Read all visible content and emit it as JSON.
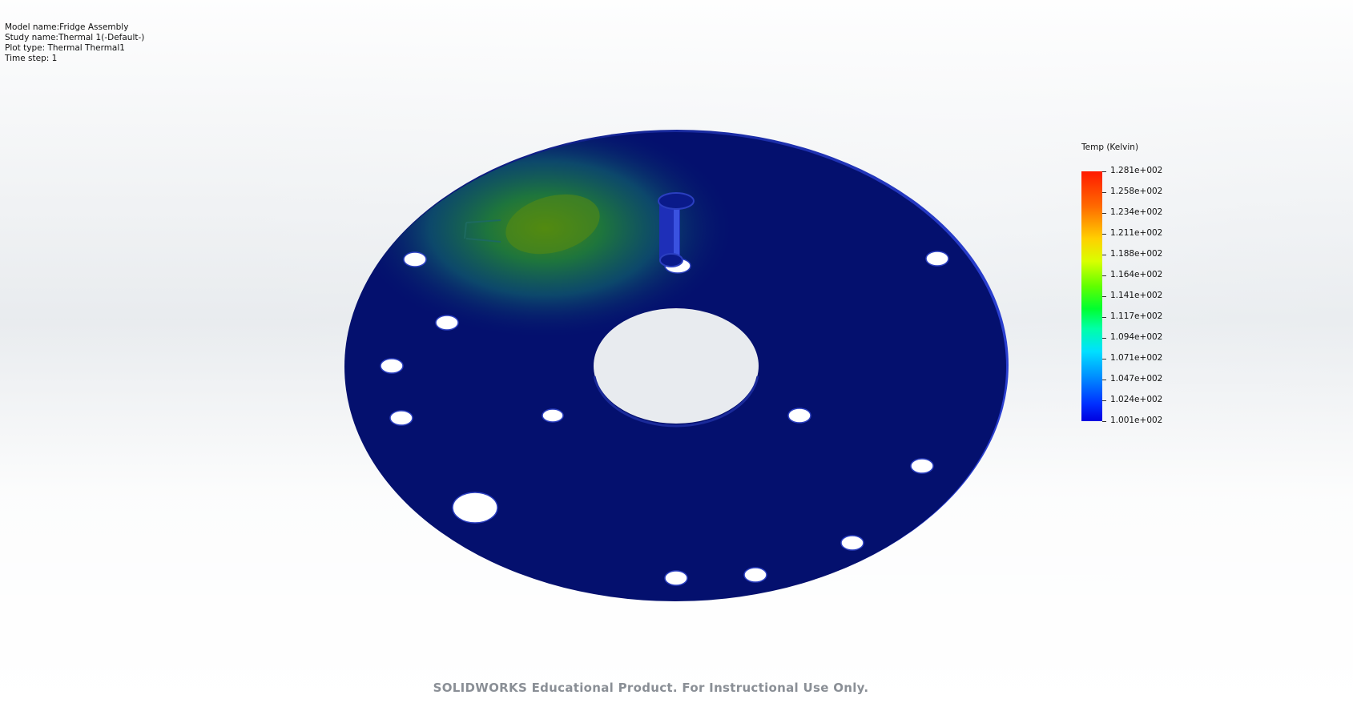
{
  "plot_info": {
    "model_name": "Model name:Fridge Assembly",
    "study_name": "Study name:Thermal 1(-Default-)",
    "plot_type": "Plot type: Thermal Thermal1",
    "time_step": "Time step: 1"
  },
  "legend": {
    "title": "Temp (Kelvin)",
    "ticks": [
      "1.281e+002",
      "1.258e+002",
      "1.234e+002",
      "1.211e+002",
      "1.188e+002",
      "1.164e+002",
      "1.141e+002",
      "1.117e+002",
      "1.094e+002",
      "1.071e+002",
      "1.047e+002",
      "1.024e+002",
      "1.001e+002"
    ],
    "max_color": "#ff1a00",
    "min_color": "#0000e0"
  },
  "model": {
    "disc_color": "#04106e",
    "hotspot_color": "#3a8a1a"
  },
  "watermark": "SOLIDWORKS Educational Product. For Instructional Use Only."
}
